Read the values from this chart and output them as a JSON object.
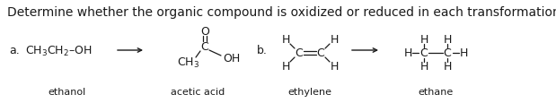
{
  "title": "Determine whether the organic compound is oxidized or reduced in each transformation.",
  "title_fontsize": 10.0,
  "bg_color": "#ffffff",
  "text_color": "#1a1a1a",
  "fig_width": 6.19,
  "fig_height": 1.16,
  "dpi": 100,
  "label_a": "a.",
  "label_b": "b.",
  "ethanol_label": "ethanol",
  "acetic_label": "acetic acid",
  "ethylene_label": "ethylene",
  "ethane_label": "ethane",
  "font_size_formula": 9.0,
  "font_size_label": 8.0,
  "font_size_atom": 9.0
}
